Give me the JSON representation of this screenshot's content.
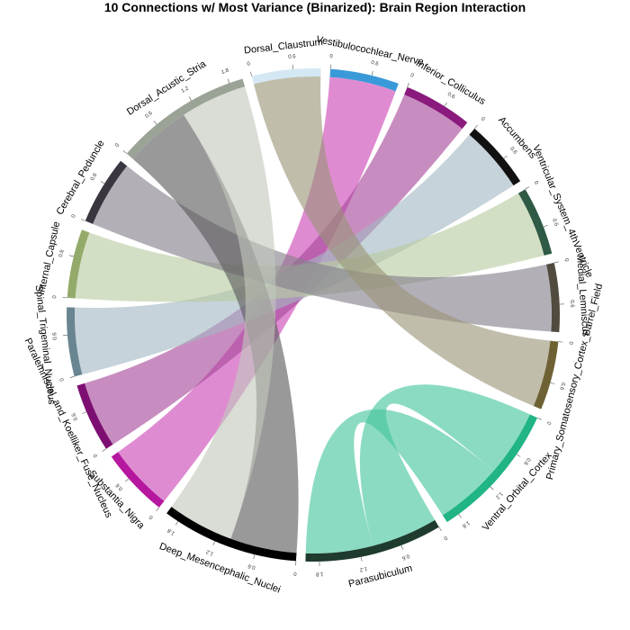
{
  "chart_data": {
    "type": "chord",
    "title": "10 Connections w/ Most Variance (Binarized): Brain Region Interaction",
    "gap_degrees": 2.2,
    "tick_step": 0.6,
    "regions": [
      {
        "name": "Vestibulocochlear_Nerve",
        "value": 1,
        "color": "#3a9ad9"
      },
      {
        "name": "Inferior_Colliculus",
        "value": 1,
        "color": "#8b1a7e"
      },
      {
        "name": "Accumbens",
        "value": 1,
        "color": "#111111"
      },
      {
        "name": "Ventricular_System_4thVentricle",
        "value": 1,
        "color": "#2f5a45"
      },
      {
        "name": "Medial_Lemniscus",
        "value": 1,
        "color": "#514b3f"
      },
      {
        "name": "Primary_Somatosensory_Cortex_Barrel_Field",
        "value": 1,
        "color": "#6e6134"
      },
      {
        "name": "Ventral_Orbital_Cortex",
        "value": 2,
        "color": "#20b486"
      },
      {
        "name": "Parasubiculum",
        "value": 2,
        "color": "#1e3b2d"
      },
      {
        "name": "Deep_Mesencephalic_Nuclei",
        "value": 2,
        "color": "#000000"
      },
      {
        "name": "Substantia_Nigra",
        "value": 1,
        "color": "#b5179e"
      },
      {
        "name": "Paralemniscal_and_Koelliker_Fuse_Nucleus",
        "value": 1,
        "color": "#7e0f72"
      },
      {
        "name": "Spinal_Trigeminal_Nucleus",
        "value": 1,
        "color": "#6a8592"
      },
      {
        "name": "Internal_Capsule",
        "value": 1,
        "color": "#93aa6a"
      },
      {
        "name": "Cerebral_Peduncle",
        "value": 1,
        "color": "#3a3640"
      },
      {
        "name": "Dorsal_Acustic_Stria",
        "value": 2,
        "color": "#9aa396"
      },
      {
        "name": "Dorsal_Claustrum",
        "value": 1,
        "color": "#d3e8f3"
      }
    ],
    "connections": [
      {
        "from": "Vestibulocochlear_Nerve",
        "to": "Substantia_Nigra",
        "color": "#cc44b5"
      },
      {
        "from": "Inferior_Colliculus",
        "to": "Paralemniscal_and_Koelliker_Fuse_Nucleus",
        "color": "#a6479a"
      },
      {
        "from": "Accumbens",
        "to": "Spinal_Trigeminal_Nucleus",
        "color": "#a5b8c4"
      },
      {
        "from": "Ventricular_System_4thVentricle",
        "to": "Internal_Capsule",
        "color": "#b8cca0"
      },
      {
        "from": "Medial_Lemniscus",
        "to": "Cerebral_Peduncle",
        "color": "#857e8a"
      },
      {
        "from": "Primary_Somatosensory_Cortex_Barrel_Field",
        "to": "Dorsal_Claustrum",
        "color": "#9a9478"
      },
      {
        "from": "Ventral_Orbital_Cortex",
        "to": "Parasubiculum",
        "color": "#43c59e"
      },
      {
        "from": "Ventral_Orbital_Cortex",
        "to": "Parasubiculum",
        "color": "#43c59e"
      },
      {
        "from": "Deep_Mesencephalic_Nuclei",
        "to": "Dorsal_Acustic_Stria",
        "color": "#5a5a5a"
      },
      {
        "from": "Deep_Mesencephalic_Nuclei",
        "to": "Dorsal_Acustic_Stria",
        "color": "#c2c8bc"
      }
    ]
  }
}
